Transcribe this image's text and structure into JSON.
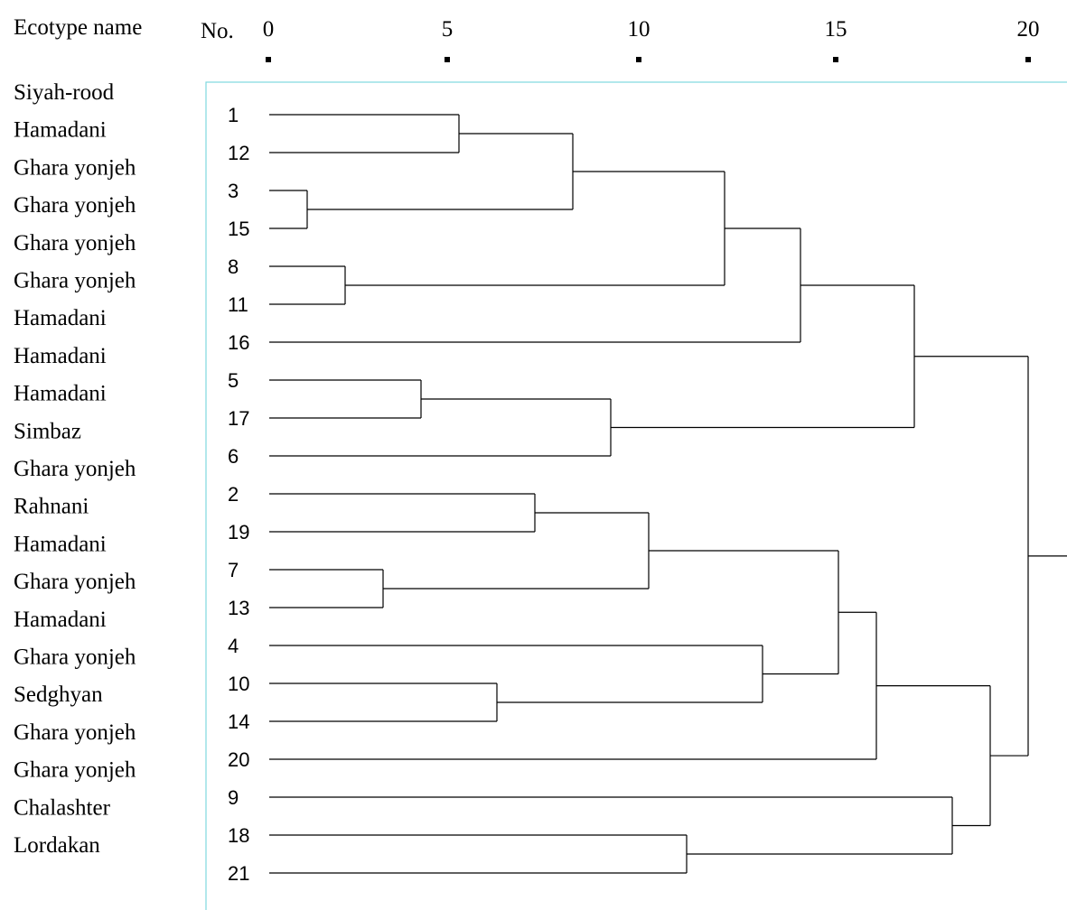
{
  "headers": {
    "ecotype": "Ecotype name",
    "number": "No."
  },
  "scale": {
    "ticks": [
      0,
      5,
      10,
      15,
      20
    ],
    "tick_labels": [
      "0",
      "5",
      "10",
      "15",
      "20"
    ]
  },
  "ecotype_names": [
    "Siyah-rood",
    "Hamadani",
    "Ghara yonjeh",
    "Ghara yonjeh",
    "Ghara yonjeh",
    "Ghara yonjeh",
    "Hamadani",
    "Hamadani",
    "Hamadani",
    "Simbaz",
    "Ghara yonjeh",
    "Rahnani",
    "Hamadani",
    "Ghara yonjeh",
    "Hamadani",
    "Ghara yonjeh",
    "Sedghyan",
    "Ghara yonjeh",
    "Ghara yonjeh",
    "Chalashter",
    "Lordakan"
  ],
  "leaf_order": [
    "1",
    "12",
    "3",
    "15",
    "8",
    "11",
    "16",
    "5",
    "17",
    "6",
    "2",
    "19",
    "7",
    "13",
    "4",
    "10",
    "14",
    "20",
    "9",
    "18",
    "21"
  ],
  "merges": [
    {
      "left": "L0",
      "right": "L1",
      "height": 5.0
    },
    {
      "left": "L2",
      "right": "L3",
      "height": 1.0
    },
    {
      "left": "N0",
      "right": "N1",
      "height": 8.0
    },
    {
      "left": "L4",
      "right": "L5",
      "height": 2.0
    },
    {
      "left": "N2",
      "right": "N3",
      "height": 12.0
    },
    {
      "left": "N4",
      "right": "L6",
      "height": 14.0
    },
    {
      "left": "L7",
      "right": "L8",
      "height": 4.0
    },
    {
      "left": "N6",
      "right": "L9",
      "height": 9.0
    },
    {
      "left": "N5",
      "right": "N7",
      "height": 17.0
    },
    {
      "left": "L10",
      "right": "L11",
      "height": 7.0
    },
    {
      "left": "L12",
      "right": "L13",
      "height": 3.0
    },
    {
      "left": "N9",
      "right": "N10",
      "height": 10.0
    },
    {
      "left": "L15",
      "right": "L16",
      "height": 6.0
    },
    {
      "left": "L14",
      "right": "N12",
      "height": 13.0
    },
    {
      "left": "N11",
      "right": "N13",
      "height": 15.0
    },
    {
      "left": "N14",
      "right": "L17",
      "height": 16.0
    },
    {
      "left": "L19",
      "right": "L20",
      "height": 11.0
    },
    {
      "left": "L18",
      "right": "N16",
      "height": 18.0
    },
    {
      "left": "N15",
      "right": "N17",
      "height": 19.0
    },
    {
      "left": "N8",
      "right": "N18",
      "height": 20.0
    }
  ]
}
